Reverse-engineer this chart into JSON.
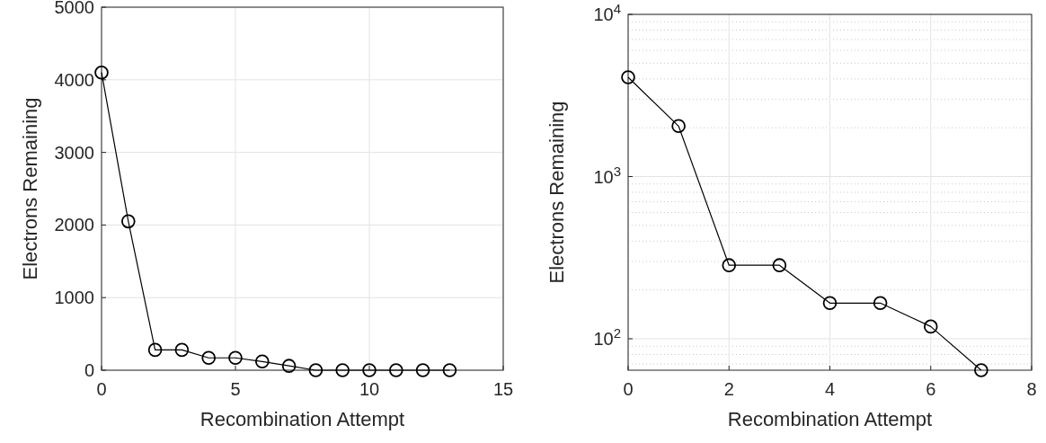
{
  "chart_data": [
    {
      "type": "line",
      "xlabel": "Recombination Attempt",
      "ylabel": "Electrons Remaining",
      "x": [
        0,
        1,
        2,
        3,
        4,
        5,
        6,
        7,
        8,
        9,
        10,
        11,
        12,
        13
      ],
      "series": [
        {
          "color": "#000000",
          "values": [
            4100,
            2050,
            280,
            280,
            170,
            170,
            120,
            60,
            0,
            0,
            0,
            0,
            0,
            0
          ]
        }
      ],
      "xlim": [
        0,
        15
      ],
      "xticks": [
        0,
        5,
        10,
        15
      ],
      "ylim": [
        0,
        5000
      ],
      "yticks": [
        0,
        1000,
        2000,
        3000,
        4000,
        5000
      ],
      "grid": true,
      "marker": "circle",
      "line_style": "solid"
    },
    {
      "type": "line",
      "xlabel": "Recombination Attempt",
      "ylabel": "Electrons Remaining",
      "x": [
        0,
        1,
        2,
        3,
        4,
        5,
        6,
        7
      ],
      "series": [
        {
          "color": "#000000",
          "values": [
            4096,
            2048,
            284,
            284,
            166,
            166,
            119,
            64
          ]
        }
      ],
      "xlim": [
        0,
        8
      ],
      "xticks": [
        0,
        2,
        4,
        6,
        8
      ],
      "ylim": [
        64,
        10000
      ],
      "yticks": [
        {
          "value": 100,
          "label": "10$^{2}$"
        },
        {
          "value": 1000,
          "label": "10$^{3}$"
        },
        {
          "value": 10000,
          "label": "10$^{4}$"
        }
      ],
      "log": "y",
      "grid": true,
      "marker": "circle",
      "line_style": "solid"
    }
  ]
}
